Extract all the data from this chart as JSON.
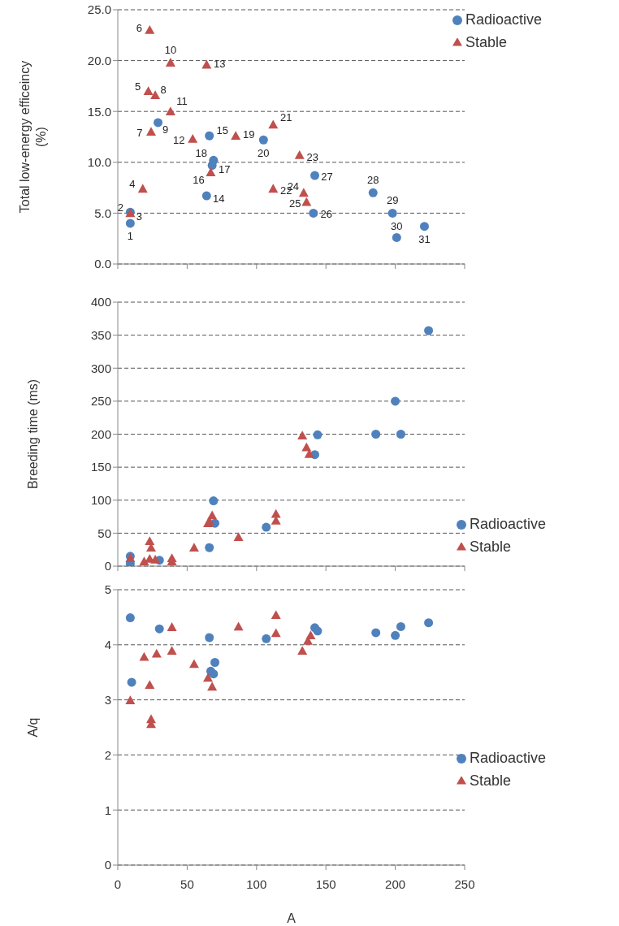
{
  "chart_data": [
    {
      "type": "scatter",
      "ylabel": "Total low-energy efficeincy (%)",
      "xlim": [
        0,
        250
      ],
      "xticks": [
        0,
        50,
        100,
        150,
        200,
        250
      ],
      "ylim": [
        0,
        25
      ],
      "yticks": [
        {
          "value": 0,
          "label": "0.0"
        },
        {
          "value": 5,
          "label": "5.0"
        },
        {
          "value": 10,
          "label": "10.0"
        },
        {
          "value": 15,
          "label": "15.0"
        },
        {
          "value": 20,
          "label": "20.0"
        },
        {
          "value": 25,
          "label": "25.0"
        }
      ],
      "grid": "y",
      "tick_labels": "y",
      "legend": "top right",
      "series": [
        {
          "name": "Radioactive",
          "color": "#4f81bd",
          "marker": "circle",
          "x": [
            9,
            9,
            29,
            64,
            66,
            68,
            69,
            105,
            141,
            142,
            184,
            198,
            201,
            221
          ],
          "values": [
            4.0,
            5.1,
            13.9,
            6.7,
            12.6,
            9.7,
            10.2,
            12.2,
            5.0,
            8.7,
            7.0,
            5.0,
            2.6,
            3.7
          ]
        },
        {
          "name": "Stable",
          "color": "#c0504d",
          "marker": "triangle",
          "x": [
            9,
            18,
            22,
            23,
            24,
            27,
            38,
            38,
            54,
            64,
            67,
            85,
            112,
            112,
            131,
            134,
            136
          ],
          "values": [
            5.0,
            7.4,
            17.0,
            23.0,
            13.0,
            16.6,
            19.8,
            15.0,
            12.3,
            19.6,
            9.0,
            12.6,
            13.7,
            7.4,
            10.7,
            7.0,
            6.1
          ]
        }
      ],
      "annotations": [
        {
          "text": "1",
          "x": 9,
          "y": 4.0
        },
        {
          "text": "2",
          "x": 9,
          "y": 5.1
        },
        {
          "text": "3",
          "x": 9,
          "y": 5.0
        },
        {
          "text": "4",
          "x": 18,
          "y": 7.4
        },
        {
          "text": "5",
          "x": 22,
          "y": 17.0
        },
        {
          "text": "6",
          "x": 23,
          "y": 23.0
        },
        {
          "text": "7",
          "x": 24,
          "y": 13.0
        },
        {
          "text": "8",
          "x": 27,
          "y": 16.6
        },
        {
          "text": "9",
          "x": 29,
          "y": 13.9
        },
        {
          "text": "10",
          "x": 38,
          "y": 19.8
        },
        {
          "text": "11",
          "x": 38,
          "y": 15.0
        },
        {
          "text": "12",
          "x": 54,
          "y": 12.3
        },
        {
          "text": "13",
          "x": 64,
          "y": 19.6
        },
        {
          "text": "14",
          "x": 64,
          "y": 6.7
        },
        {
          "text": "15",
          "x": 66,
          "y": 12.6
        },
        {
          "text": "16",
          "x": 67,
          "y": 9.0
        },
        {
          "text": "17",
          "x": 68,
          "y": 9.7
        },
        {
          "text": "18",
          "x": 69,
          "y": 10.2
        },
        {
          "text": "19",
          "x": 85,
          "y": 12.6
        },
        {
          "text": "20",
          "x": 105,
          "y": 12.2
        },
        {
          "text": "21",
          "x": 112,
          "y": 13.7
        },
        {
          "text": "22",
          "x": 112,
          "y": 7.4
        },
        {
          "text": "23",
          "x": 131,
          "y": 10.7
        },
        {
          "text": "24",
          "x": 134,
          "y": 7.0
        },
        {
          "text": "25",
          "x": 136,
          "y": 6.1
        },
        {
          "text": "26",
          "x": 141,
          "y": 5.0
        },
        {
          "text": "27",
          "x": 142,
          "y": 8.7
        },
        {
          "text": "28",
          "x": 184,
          "y": 7.0
        },
        {
          "text": "29",
          "x": 198,
          "y": 5.0
        },
        {
          "text": "30",
          "x": 201,
          "y": 2.6
        },
        {
          "text": "31",
          "x": 221,
          "y": 3.7
        }
      ]
    },
    {
      "type": "scatter",
      "ylabel": "Breeding time (ms)",
      "xlim": [
        0,
        250
      ],
      "xticks": [
        0,
        50,
        100,
        150,
        200,
        250
      ],
      "ylim": [
        0,
        400
      ],
      "yticks": [
        0,
        50,
        100,
        150,
        200,
        250,
        300,
        350,
        400
      ],
      "grid": "y",
      "tick_labels": "y",
      "legend": "bottom right",
      "series": [
        {
          "name": "Radioactive",
          "color": "#4f81bd",
          "marker": "circle",
          "x": [
            9,
            9,
            30,
            66,
            69,
            70,
            107,
            142,
            144,
            186,
            200,
            204,
            224
          ],
          "values": [
            15,
            4,
            9,
            28,
            99,
            65,
            59,
            169,
            199,
            200,
            250,
            200,
            357
          ]
        },
        {
          "name": "Stable",
          "color": "#c0504d",
          "marker": "triangle",
          "x": [
            9,
            19,
            23,
            24,
            23,
            27,
            39,
            39,
            55,
            65,
            66,
            68,
            87,
            114,
            114,
            133,
            136,
            138
          ],
          "values": [
            12,
            7,
            38,
            28,
            11,
            10,
            12,
            7,
            28,
            65,
            68,
            77,
            44,
            79,
            69,
            198,
            180,
            170
          ]
        }
      ]
    },
    {
      "type": "scatter",
      "ylabel": "A/q",
      "xlabel": "A",
      "xlim": [
        0,
        250
      ],
      "xticks": [
        0,
        50,
        100,
        150,
        200,
        250
      ],
      "ylim": [
        0,
        5
      ],
      "yticks": [
        0,
        1,
        2,
        3,
        4,
        5
      ],
      "grid": "y",
      "legend": "bottom right",
      "series": [
        {
          "name": "Radioactive",
          "color": "#4f81bd",
          "marker": "circle",
          "x": [
            9,
            10,
            30,
            66,
            70,
            67,
            69,
            107,
            142,
            144,
            186,
            200,
            204,
            224
          ],
          "values": [
            4.49,
            3.32,
            4.29,
            4.13,
            3.68,
            3.52,
            3.47,
            4.11,
            4.31,
            4.25,
            4.22,
            4.17,
            4.33,
            4.4
          ]
        },
        {
          "name": "Stable",
          "color": "#c0504d",
          "marker": "triangle",
          "x": [
            9,
            19,
            23,
            24,
            24,
            28,
            39,
            39,
            55,
            65,
            68,
            87,
            114,
            114,
            133,
            137,
            139
          ],
          "values": [
            2.99,
            3.78,
            3.27,
            2.65,
            2.56,
            3.84,
            4.32,
            3.89,
            3.65,
            3.4,
            3.24,
            4.33,
            4.54,
            4.21,
            3.89,
            4.07,
            4.17
          ]
        }
      ]
    }
  ]
}
